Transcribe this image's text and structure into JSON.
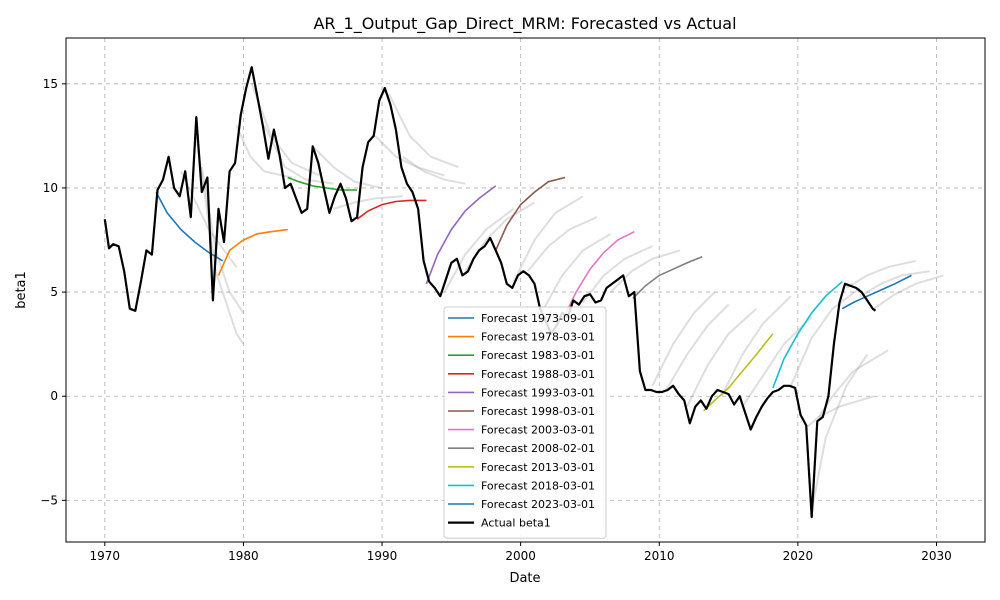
{
  "chart_data": {
    "type": "line",
    "title": "AR_1_Output_Gap_Direct_MRM: Forecasted vs Actual",
    "xlabel": "Date",
    "ylabel": "beta1",
    "xlim": [
      1967.2,
      2033.5
    ],
    "ylim": [
      -7,
      17.2
    ],
    "xticks": [
      1970,
      1980,
      1990,
      2000,
      2010,
      2020,
      2030
    ],
    "xtick_labels": [
      "1970",
      "1980",
      "1990",
      "2000",
      "2010",
      "2020",
      "2030"
    ],
    "yticks": [
      -5,
      0,
      5,
      10,
      15
    ],
    "ytick_labels": [
      "−5",
      "0",
      "5",
      "10",
      "15"
    ],
    "grid": true,
    "legend_position": "lower-center",
    "actual": {
      "name": "Actual beta1",
      "color": "#000000",
      "x": [
        1970.0,
        1970.3,
        1970.6,
        1971.0,
        1971.4,
        1971.8,
        1972.2,
        1972.6,
        1973.0,
        1973.4,
        1973.8,
        1974.2,
        1974.6,
        1975.0,
        1975.4,
        1975.8,
        1976.2,
        1976.6,
        1977.0,
        1977.4,
        1977.8,
        1978.2,
        1978.6,
        1979.0,
        1979.4,
        1979.8,
        1980.2,
        1980.6,
        1981.0,
        1981.4,
        1981.8,
        1982.2,
        1982.6,
        1983.0,
        1983.4,
        1983.8,
        1984.2,
        1984.6,
        1985.0,
        1985.4,
        1985.8,
        1986.2,
        1986.6,
        1987.0,
        1987.4,
        1987.8,
        1988.2,
        1988.6,
        1989.0,
        1989.4,
        1989.8,
        1990.2,
        1990.6,
        1991.0,
        1991.4,
        1991.8,
        1992.2,
        1992.6,
        1993.0,
        1993.4,
        1993.8,
        1994.2,
        1994.6,
        1995.0,
        1995.4,
        1995.8,
        1996.2,
        1996.6,
        1997.0,
        1997.4,
        1997.8,
        1998.2,
        1998.6,
        1999.0,
        1999.4,
        1999.8,
        2000.2,
        2000.6,
        2001.0,
        2001.4,
        2001.8,
        2002.2,
        2002.6,
        2003.0,
        2003.4,
        2003.8,
        2004.2,
        2004.6,
        2005.0,
        2005.4,
        2005.8,
        2006.2,
        2006.6,
        2007.0,
        2007.4,
        2007.8,
        2008.2,
        2008.6,
        2009.0,
        2009.4,
        2009.8,
        2010.2,
        2010.6,
        2011.0,
        2011.4,
        2011.8,
        2012.2,
        2012.6,
        2013.0,
        2013.4,
        2013.8,
        2014.2,
        2014.6,
        2015.0,
        2015.4,
        2015.8,
        2016.2,
        2016.6,
        2017.0,
        2017.4,
        2017.8,
        2018.2,
        2018.6,
        2019.0,
        2019.4,
        2019.8,
        2020.2,
        2020.6,
        2021.0,
        2021.4,
        2021.8,
        2022.2,
        2022.6,
        2023.0,
        2023.4,
        2023.8,
        2024.2,
        2024.6,
        2025.0,
        2025.4,
        2025.6
      ],
      "y": [
        8.5,
        7.1,
        7.3,
        7.2,
        6.0,
        4.2,
        4.1,
        5.5,
        7.0,
        6.8,
        9.9,
        10.4,
        11.5,
        10.0,
        9.6,
        10.8,
        8.6,
        13.4,
        9.8,
        10.5,
        4.6,
        9.0,
        7.4,
        10.8,
        11.2,
        13.5,
        14.8,
        15.8,
        14.4,
        13.0,
        11.4,
        12.8,
        11.6,
        10.0,
        10.2,
        9.5,
        8.8,
        9.0,
        12.0,
        11.2,
        10.0,
        8.8,
        9.6,
        10.2,
        9.5,
        8.4,
        8.6,
        11.0,
        12.2,
        12.5,
        14.2,
        14.8,
        14.0,
        12.8,
        11.0,
        10.2,
        9.8,
        9.0,
        6.5,
        5.5,
        5.2,
        4.8,
        5.6,
        6.4,
        6.6,
        5.8,
        6.0,
        6.6,
        7.0,
        7.2,
        7.6,
        7.0,
        6.4,
        5.4,
        5.2,
        5.8,
        6.0,
        5.8,
        5.4,
        4.2,
        3.6,
        3.0,
        3.4,
        4.0,
        3.8,
        4.6,
        4.4,
        4.8,
        4.9,
        4.5,
        4.6,
        5.2,
        5.4,
        5.6,
        5.8,
        4.8,
        5.0,
        1.2,
        0.3,
        0.3,
        0.2,
        0.2,
        0.3,
        0.5,
        0.1,
        -0.2,
        -1.3,
        -0.5,
        -0.2,
        -0.6,
        0.0,
        0.3,
        0.2,
        0.1,
        -0.4,
        0.0,
        -0.8,
        -1.6,
        -1.0,
        -0.5,
        -0.1,
        0.2,
        0.3,
        0.5,
        0.5,
        0.4,
        -0.9,
        -1.4,
        -5.8,
        -1.2,
        -1.0,
        0.0,
        2.5,
        4.5,
        5.4,
        5.3,
        5.2,
        5.0,
        4.6,
        4.2,
        4.1
      ]
    },
    "series": [
      {
        "name": "Forecast 1973-09-01",
        "color": "#1f77b4",
        "x": [
          1973.7,
          1974.5,
          1975.5,
          1976.5,
          1977.5,
          1978.5
        ],
        "y": [
          9.8,
          8.8,
          8.0,
          7.4,
          6.9,
          6.5
        ]
      },
      {
        "name": "Forecast 1978-03-01",
        "color": "#ff7f0e",
        "x": [
          1978.2,
          1979.0,
          1980.0,
          1981.0,
          1982.0,
          1983.2
        ],
        "y": [
          5.8,
          7.0,
          7.5,
          7.8,
          7.9,
          8.0
        ]
      },
      {
        "name": "Forecast 1983-03-01",
        "color": "#2ca02c",
        "x": [
          1983.2,
          1984.0,
          1985.0,
          1986.0,
          1987.0,
          1988.2
        ],
        "y": [
          10.5,
          10.3,
          10.1,
          10.0,
          9.9,
          9.9
        ]
      },
      {
        "name": "Forecast 1988-03-01",
        "color": "#d62728",
        "x": [
          1988.2,
          1989.0,
          1990.0,
          1991.0,
          1992.0,
          1993.2
        ],
        "y": [
          8.5,
          8.9,
          9.2,
          9.35,
          9.4,
          9.4
        ]
      },
      {
        "name": "Forecast 1993-03-01",
        "color": "#9467bd",
        "x": [
          1993.2,
          1994.0,
          1995.0,
          1996.0,
          1997.0,
          1998.2
        ],
        "y": [
          5.4,
          6.8,
          8.0,
          8.9,
          9.5,
          10.1
        ]
      },
      {
        "name": "Forecast 1998-03-01",
        "color": "#8c564b",
        "x": [
          1998.2,
          1999.0,
          2000.0,
          2001.0,
          2002.0,
          2003.2
        ],
        "y": [
          7.0,
          8.2,
          9.2,
          9.8,
          10.3,
          10.5
        ]
      },
      {
        "name": "Forecast 2003-03-01",
        "color": "#e377c2",
        "x": [
          2003.2,
          2004.0,
          2005.0,
          2006.0,
          2007.0,
          2008.2
        ],
        "y": [
          3.9,
          5.0,
          6.1,
          6.9,
          7.5,
          7.9
        ]
      },
      {
        "name": "Forecast 2008-02-01",
        "color": "#7f7f7f",
        "x": [
          2008.1,
          2009.0,
          2010.0,
          2011.0,
          2012.0,
          2013.1
        ],
        "y": [
          4.7,
          5.3,
          5.8,
          6.1,
          6.4,
          6.7
        ]
      },
      {
        "name": "Forecast 2013-03-01",
        "color": "#bcbd22",
        "x": [
          2013.2,
          2014.0,
          2015.0,
          2016.0,
          2017.0,
          2018.2
        ],
        "y": [
          -0.7,
          -0.2,
          0.4,
          1.2,
          2.0,
          3.0
        ]
      },
      {
        "name": "Forecast 2018-03-01",
        "color": "#17becf",
        "x": [
          2018.2,
          2019.0,
          2020.0,
          2021.0,
          2022.0,
          2023.2
        ],
        "y": [
          0.4,
          1.8,
          3.0,
          4.0,
          4.8,
          5.5
        ]
      },
      {
        "name": "Forecast 2023-03-01",
        "color": "#1f77b4",
        "x": [
          2023.2,
          2024.0,
          2025.0,
          2026.0,
          2027.0,
          2028.2
        ],
        "y": [
          4.2,
          4.5,
          4.8,
          5.1,
          5.4,
          5.8
        ]
      }
    ],
    "background_forecasts": [
      {
        "x": [
          1976.6,
          1978.0,
          1979.5,
          1980.0
        ],
        "y": [
          12.5,
          6.0,
          3.0,
          2.5
        ]
      },
      {
        "x": [
          1977.0,
          1978.0,
          1979.0,
          1980.0
        ],
        "y": [
          11.0,
          7.0,
          5.0,
          4.0
        ]
      },
      {
        "x": [
          1975.5,
          1976.5,
          1977.5,
          1979.5
        ],
        "y": [
          10.8,
          9.4,
          8.0,
          6.2
        ]
      },
      {
        "x": [
          1979.5,
          1980.5,
          1981.5,
          1983.5
        ],
        "y": [
          13.0,
          11.5,
          10.8,
          10.5
        ]
      },
      {
        "x": [
          1980.6,
          1982.0,
          1983.5,
          1985.5
        ],
        "y": [
          15.0,
          12.5,
          11.2,
          10.6
        ]
      },
      {
        "x": [
          1981.5,
          1983.0,
          1984.5,
          1986.5
        ],
        "y": [
          13.0,
          11.0,
          10.4,
          10.2
        ]
      },
      {
        "x": [
          1985.0,
          1986.5,
          1988.0,
          1990.0
        ],
        "y": [
          12.0,
          11.0,
          10.3,
          10.0
        ]
      },
      {
        "x": [
          1986.5,
          1988.0,
          1989.5,
          1991.5
        ],
        "y": [
          9.0,
          9.3,
          9.5,
          9.6
        ]
      },
      {
        "x": [
          1989.5,
          1991.0,
          1992.5,
          1994.5
        ],
        "y": [
          12.5,
          11.5,
          11.0,
          10.6
        ]
      },
      {
        "x": [
          1990.5,
          1992.0,
          1993.5,
          1995.5
        ],
        "y": [
          14.5,
          12.5,
          11.5,
          11.0
        ]
      },
      {
        "x": [
          1991.5,
          1993.0,
          1994.5,
          1996.0
        ],
        "y": [
          11.5,
          10.8,
          10.4,
          10.2
        ]
      },
      {
        "x": [
          1994.5,
          1996.0,
          1997.5,
          1999.5
        ],
        "y": [
          5.0,
          6.8,
          8.0,
          9.0
        ]
      },
      {
        "x": [
          1996.0,
          1997.5,
          1999.0,
          2001.0
        ],
        "y": [
          6.0,
          7.5,
          8.5,
          9.3
        ]
      },
      {
        "x": [
          1999.5,
          2001.0,
          2002.5,
          2004.5
        ],
        "y": [
          5.5,
          7.5,
          8.8,
          9.6
        ]
      },
      {
        "x": [
          2000.5,
          2002.0,
          2003.5,
          2005.5
        ],
        "y": [
          6.0,
          7.2,
          8.0,
          8.6
        ]
      },
      {
        "x": [
          2001.5,
          2003.0,
          2004.5,
          2006.5
        ],
        "y": [
          4.0,
          5.8,
          7.0,
          7.8
        ]
      },
      {
        "x": [
          2004.5,
          2006.0,
          2007.5,
          2009.5
        ],
        "y": [
          4.5,
          5.8,
          6.6,
          7.2
        ]
      },
      {
        "x": [
          2006.5,
          2008.0,
          2009.5,
          2011.5
        ],
        "y": [
          5.0,
          6.0,
          6.6,
          7.0
        ]
      },
      {
        "x": [
          2009.5,
          2011.0,
          2012.5,
          2014.0
        ],
        "y": [
          0.5,
          2.5,
          4.0,
          5.0
        ]
      },
      {
        "x": [
          2010.5,
          2012.0,
          2013.5,
          2015.0
        ],
        "y": [
          0.3,
          2.0,
          3.4,
          4.4
        ]
      },
      {
        "x": [
          2012.0,
          2013.5,
          2015.0,
          2017.0
        ],
        "y": [
          -0.5,
          1.5,
          3.0,
          4.2
        ]
      },
      {
        "x": [
          2014.5,
          2016.0,
          2017.5,
          2019.5
        ],
        "y": [
          0.0,
          2.0,
          3.5,
          4.8
        ]
      },
      {
        "x": [
          2016.0,
          2017.5,
          2019.0,
          2021.0
        ],
        "y": [
          -0.5,
          1.0,
          2.5,
          3.8
        ]
      },
      {
        "x": [
          2019.5,
          2021.0,
          2022.5,
          2024.5
        ],
        "y": [
          0.5,
          2.8,
          4.2,
          5.2
        ]
      },
      {
        "x": [
          2020.6,
          2021.5,
          2023.0,
          2025.5
        ],
        "y": [
          -1.5,
          -1.0,
          -0.5,
          0.0
        ]
      },
      {
        "x": [
          2021.0,
          2022.0,
          2023.5,
          2025.0
        ],
        "y": [
          -5.5,
          -2.0,
          0.5,
          2.0
        ]
      },
      {
        "x": [
          2021.5,
          2022.5,
          2024.0,
          2026.5
        ],
        "y": [
          -1.0,
          0.0,
          1.2,
          2.2
        ]
      },
      {
        "x": [
          2023.5,
          2025.0,
          2026.5,
          2028.5
        ],
        "y": [
          5.2,
          5.8,
          6.2,
          6.5
        ]
      },
      {
        "x": [
          2024.5,
          2026.0,
          2027.5,
          2029.5
        ],
        "y": [
          4.8,
          5.4,
          5.8,
          6.0
        ]
      },
      {
        "x": [
          2025.5,
          2027.0,
          2028.5,
          2030.5
        ],
        "y": [
          4.2,
          4.9,
          5.4,
          5.8
        ]
      }
    ]
  }
}
